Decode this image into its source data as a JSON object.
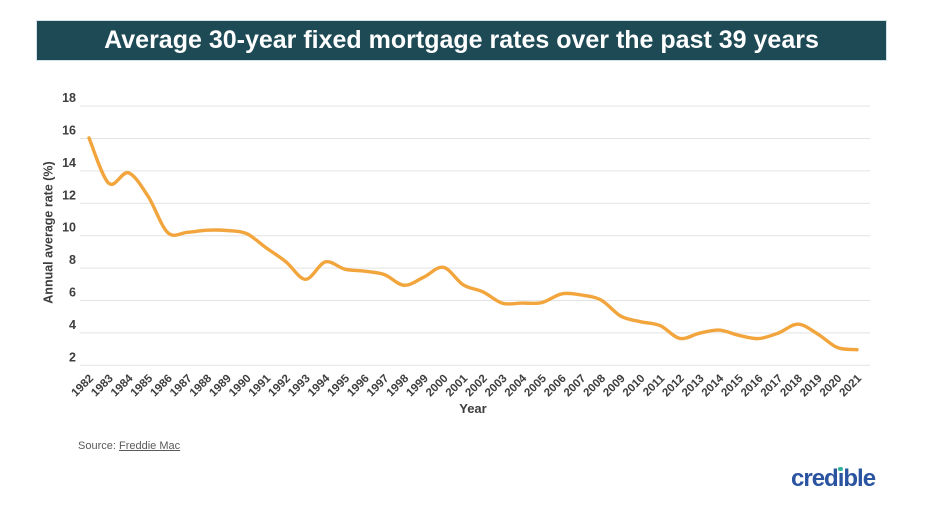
{
  "banner": {
    "title": "Average 30-year fixed mortgage rates over the past 39 years",
    "bg_color": "#1d4a55",
    "text_color": "#ffffff"
  },
  "chart_data": {
    "type": "line",
    "title": "Average 30-year fixed mortgage rates over the past 39 years",
    "xlabel": "Year",
    "ylabel": "Annual average rate (%)",
    "categories": [
      "1982",
      "1983",
      "1984",
      "1985",
      "1986",
      "1987",
      "1988",
      "1989",
      "1990",
      "1991",
      "1992",
      "1993",
      "1994",
      "1995",
      "1996",
      "1997",
      "1998",
      "1999",
      "2000",
      "2001",
      "2002",
      "2003",
      "2004",
      "2005",
      "2006",
      "2007",
      "2008",
      "2009",
      "2010",
      "2011",
      "2012",
      "2013",
      "2014",
      "2015",
      "2016",
      "2017",
      "2018",
      "2019",
      "2020",
      "2021"
    ],
    "values": [
      16.04,
      13.24,
      13.88,
      12.43,
      10.19,
      10.21,
      10.34,
      10.32,
      10.13,
      9.25,
      8.39,
      7.31,
      8.38,
      7.93,
      7.81,
      7.6,
      6.94,
      7.44,
      8.05,
      6.97,
      6.54,
      5.83,
      5.84,
      5.87,
      6.41,
      6.34,
      6.03,
      5.04,
      4.69,
      4.45,
      3.66,
      3.98,
      4.17,
      3.85,
      3.65,
      3.99,
      4.54,
      3.94,
      3.1,
      2.96
    ],
    "yticks": [
      2,
      4,
      6,
      8,
      10,
      12,
      14,
      16,
      18
    ],
    "ylim": [
      2,
      18
    ],
    "grid": "horizontal-only",
    "legend": "none",
    "line_color": "#f2a53c",
    "gridline_color": "#e3e3e3",
    "smoothing": "spline"
  },
  "source": {
    "label": "Source:",
    "link_text": "Freddie Mac"
  },
  "logo": {
    "text": "credible",
    "color": "#2a53a0",
    "dot_color": "#2fb49a"
  }
}
